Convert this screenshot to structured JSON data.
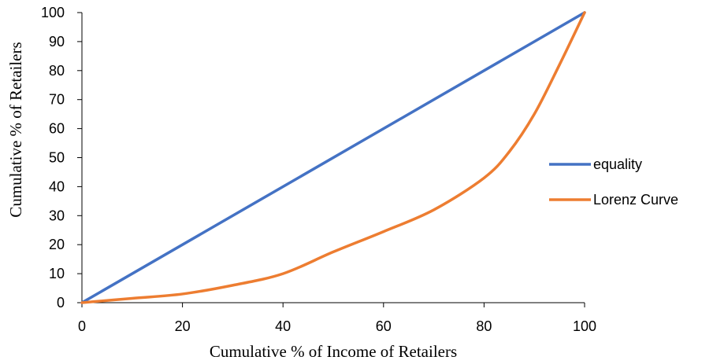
{
  "chart_data": {
    "type": "line",
    "title": "",
    "xlabel": "Cumulative %  of  Income of Retailers",
    "ylabel": "Cumulative  %  of Retailers",
    "xlim": [
      0,
      100
    ],
    "ylim": [
      0,
      100
    ],
    "x_ticks": [
      "0",
      "20",
      "40",
      "60",
      "80",
      "100"
    ],
    "y_ticks": [
      "0",
      "10",
      "20",
      "30",
      "40",
      "50",
      "60",
      "70",
      "80",
      "90",
      "100"
    ],
    "grid": false,
    "legend_position": "right",
    "series": [
      {
        "name": "equality",
        "color": "#4472C4",
        "x": [
          0,
          100
        ],
        "y": [
          0,
          100
        ]
      },
      {
        "name": "Lorenz Curve",
        "color": "#ED7D31",
        "x": [
          0,
          10,
          20,
          30,
          40,
          50,
          60,
          70,
          80,
          85,
          90,
          95,
          100
        ],
        "y": [
          0,
          1.5,
          3,
          6,
          10,
          17.5,
          24.5,
          32,
          43,
          52,
          65,
          82,
          100
        ]
      }
    ]
  }
}
